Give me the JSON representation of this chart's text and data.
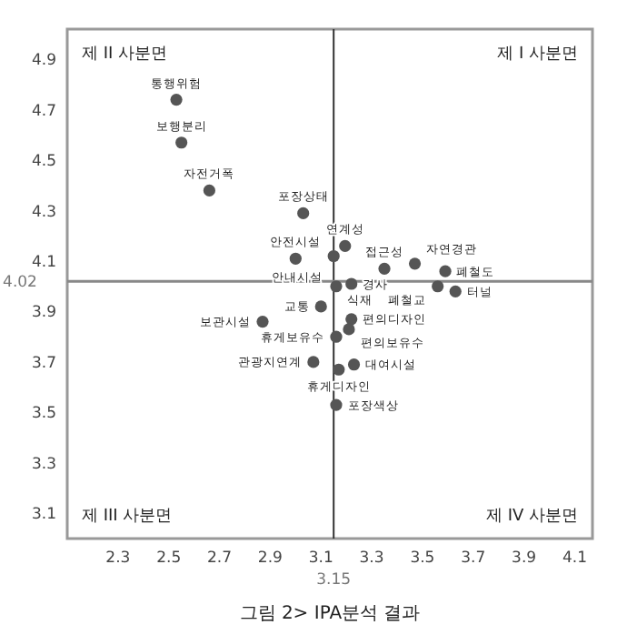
{
  "chart_data": {
    "type": "scatter",
    "title": "그림 2> IPA분석 결과",
    "x": [
      2.53,
      2.55,
      2.66,
      3.03,
      3.0,
      3.195,
      3.15,
      3.35,
      3.47,
      3.59,
      3.16,
      3.22,
      3.56,
      3.63,
      3.1,
      2.87,
      3.22,
      3.21,
      3.16,
      3.07,
      3.23,
      3.17,
      3.16
    ],
    "series": [
      {
        "color": "#555555",
        "values": [
          4.74,
          4.57,
          4.38,
          4.29,
          4.11,
          4.16,
          4.12,
          4.07,
          4.09,
          4.06,
          4.0,
          4.01,
          4.0,
          3.98,
          3.92,
          3.86,
          3.87,
          3.83,
          3.8,
          3.7,
          3.69,
          3.67,
          3.53
        ]
      }
    ],
    "xlim": [
      2.1,
      4.17
    ],
    "ylim": [
      3.0,
      5.02
    ],
    "xticks": [
      2.3,
      2.5,
      2.7,
      2.9,
      3.1,
      3.3,
      3.5,
      3.7,
      3.9,
      4.1
    ],
    "yticks": [
      3.1,
      3.3,
      3.5,
      3.7,
      3.9,
      4.1,
      4.3,
      4.5,
      4.7,
      4.9
    ],
    "marker": "circle",
    "grid": false,
    "ref_lines": [
      {
        "axis": "x",
        "value": 3.15,
        "label": "3.15"
      },
      {
        "axis": "y",
        "value": 4.02,
        "label": "4.02"
      }
    ],
    "annotations": [
      "제 II 사분면",
      "제 I 사분면",
      "제 III 사분면",
      "제 IV 사분면",
      {
        "text": "통행위험",
        "x": 2.53,
        "y": 4.74
      },
      {
        "text": "보행분리",
        "x": 2.55,
        "y": 4.57
      },
      {
        "text": "자전거폭",
        "x": 2.66,
        "y": 4.38
      },
      {
        "text": "포장상태",
        "x": 3.03,
        "y": 4.29
      },
      {
        "text": "안전시설",
        "x": 3.0,
        "y": 4.11
      },
      {
        "text": "연계성",
        "x": 3.195,
        "y": 4.16
      },
      {
        "text": "안내시설",
        "x": 3.15,
        "y": 4.12
      },
      {
        "text": "접근성",
        "x": 3.35,
        "y": 4.07
      },
      {
        "text": "자연경관",
        "x": 3.47,
        "y": 4.09
      },
      {
        "text": "폐철도",
        "x": 3.59,
        "y": 4.06
      },
      {
        "text": "식재",
        "x": 3.16,
        "y": 4.0
      },
      {
        "text": "경사",
        "x": 3.22,
        "y": 4.01
      },
      {
        "text": "폐철교",
        "x": 3.56,
        "y": 4.0
      },
      {
        "text": "터널",
        "x": 3.63,
        "y": 3.98
      },
      {
        "text": "교통",
        "x": 3.1,
        "y": 3.92
      },
      {
        "text": "보관시설",
        "x": 2.87,
        "y": 3.86
      },
      {
        "text": "편의디자인",
        "x": 3.22,
        "y": 3.87
      },
      {
        "text": "편의보유수",
        "x": 3.21,
        "y": 3.83
      },
      {
        "text": "휴게보유수",
        "x": 3.16,
        "y": 3.8
      },
      {
        "text": "관광지연계",
        "x": 3.07,
        "y": 3.7
      },
      {
        "text": "대여시설",
        "x": 3.23,
        "y": 3.69
      },
      {
        "text": "휴게디자인",
        "x": 3.17,
        "y": 3.67
      },
      {
        "text": "포장색상",
        "x": 3.16,
        "y": 3.53
      }
    ]
  }
}
